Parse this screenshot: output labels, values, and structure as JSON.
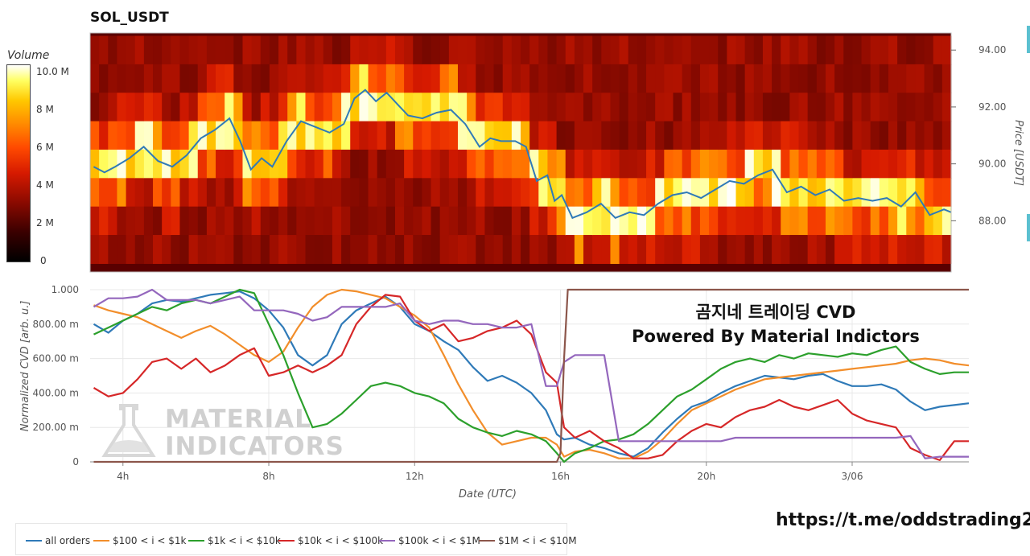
{
  "title": "SOL_USDT",
  "colorbar": {
    "title": "Volume",
    "ticks": [
      {
        "label": "10.0 M",
        "value": 10
      },
      {
        "label": "8 M",
        "value": 8
      },
      {
        "label": "6 M",
        "value": 6
      },
      {
        "label": "4 M",
        "value": 4
      },
      {
        "label": "2 M",
        "value": 2
      },
      {
        "label": "0",
        "value": 0
      }
    ],
    "max": 11.2
  },
  "overlay": {
    "line1": "곰지네 트레이딩 CVD",
    "line2": "Powered By Material Indictors"
  },
  "watermark": {
    "line1": "MATERIAL",
    "line2": "INDICATORS"
  },
  "link": "https://t.me/oddstrading2",
  "chart_data": [
    {
      "type": "heatmap",
      "title": "SOL_USDT",
      "ylabel": "Price [USDT]",
      "ylim": [
        86.2,
        94.6
      ],
      "y_ticks": [
        "94.00",
        "92.00",
        "90.00",
        "88.00"
      ],
      "x_range_hours": [
        3.1,
        27.2
      ],
      "price_levels": [
        94.0,
        93.0,
        92.0,
        91.0,
        90.0,
        89.0,
        88.0,
        87.0,
        86.2
      ],
      "colorscale": [
        "#000000",
        "#3a0000",
        "#8a0a00",
        "#d61a00",
        "#ff4a00",
        "#ff8a00",
        "#ffc800",
        "#ffff60",
        "#ffffff"
      ],
      "price_series": {
        "name": "Price",
        "color": "#2f7ab8",
        "x": [
          3.2,
          3.5,
          3.8,
          4.2,
          4.6,
          5.0,
          5.4,
          5.8,
          6.2,
          6.6,
          7.0,
          7.3,
          7.6,
          7.9,
          8.2,
          8.6,
          9.0,
          9.4,
          9.8,
          10.2,
          10.5,
          10.8,
          11.1,
          11.4,
          11.7,
          12.0,
          12.4,
          12.8,
          13.2,
          13.6,
          14.0,
          14.3,
          14.6,
          15.0,
          15.3,
          15.6,
          15.9,
          16.1,
          16.3,
          16.6,
          17.0,
          17.4,
          17.8,
          18.2,
          18.6,
          19.0,
          19.4,
          19.8,
          20.2,
          20.6,
          21.0,
          21.4,
          21.8,
          22.2,
          22.6,
          23.0,
          23.4,
          23.8,
          24.2,
          24.6,
          25.0,
          25.4,
          25.8,
          26.2,
          26.6,
          27.0,
          27.2
        ],
        "y": [
          89.9,
          89.7,
          89.9,
          90.2,
          90.6,
          90.1,
          89.9,
          90.3,
          90.9,
          91.2,
          91.6,
          90.8,
          89.8,
          90.2,
          89.9,
          90.8,
          91.5,
          91.3,
          91.1,
          91.4,
          92.3,
          92.6,
          92.2,
          92.5,
          92.1,
          91.7,
          91.6,
          91.8,
          91.9,
          91.4,
          90.6,
          90.9,
          90.8,
          90.8,
          90.6,
          89.4,
          89.6,
          88.7,
          88.9,
          88.1,
          88.3,
          88.6,
          88.1,
          88.3,
          88.2,
          88.6,
          88.9,
          89.0,
          88.8,
          89.1,
          89.4,
          89.3,
          89.6,
          89.8,
          89.0,
          89.2,
          88.9,
          89.1,
          88.7,
          88.8,
          88.7,
          88.8,
          88.5,
          89.0,
          88.2,
          88.4,
          88.3
        ]
      }
    },
    {
      "type": "line",
      "xlabel": "Date (UTC)",
      "ylabel": "Normalized CVD [arb. u.]",
      "ylim": [
        0,
        1
      ],
      "y_ticks": [
        "1.000",
        "800.00 m",
        "600.00 m",
        "400.00 m",
        "200.00 m",
        "0"
      ],
      "x_ticks": [
        "4h",
        "8h",
        "12h",
        "16h",
        "20h",
        "3/06"
      ],
      "x_tick_hours": [
        4,
        8,
        12,
        16,
        20,
        24
      ],
      "x_range_hours": [
        3.1,
        27.2
      ],
      "series": [
        {
          "name": "all orders",
          "color": "#2f7ab8",
          "x": [
            3.2,
            3.6,
            4.0,
            4.4,
            4.8,
            5.2,
            5.6,
            6.0,
            6.4,
            6.8,
            7.2,
            7.6,
            8.0,
            8.4,
            8.8,
            9.2,
            9.6,
            10.0,
            10.4,
            10.8,
            11.2,
            11.6,
            12.0,
            12.4,
            12.8,
            13.2,
            13.6,
            14.0,
            14.4,
            14.8,
            15.2,
            15.6,
            15.9,
            16.1,
            16.4,
            16.8,
            17.2,
            17.6,
            18.0,
            18.4,
            18.8,
            19.2,
            19.6,
            20.0,
            20.4,
            20.8,
            21.2,
            21.6,
            22.0,
            22.4,
            22.8,
            23.2,
            23.6,
            24.0,
            24.4,
            24.8,
            25.2,
            25.6,
            26.0,
            26.4,
            26.8,
            27.2
          ],
          "y": [
            0.8,
            0.75,
            0.82,
            0.86,
            0.92,
            0.94,
            0.93,
            0.95,
            0.97,
            0.98,
            0.99,
            0.95,
            0.88,
            0.78,
            0.62,
            0.56,
            0.62,
            0.8,
            0.88,
            0.92,
            0.96,
            0.9,
            0.8,
            0.76,
            0.7,
            0.65,
            0.55,
            0.47,
            0.5,
            0.46,
            0.4,
            0.3,
            0.16,
            0.13,
            0.14,
            0.1,
            0.08,
            0.05,
            0.03,
            0.08,
            0.17,
            0.25,
            0.32,
            0.35,
            0.4,
            0.44,
            0.47,
            0.5,
            0.49,
            0.48,
            0.5,
            0.51,
            0.47,
            0.44,
            0.44,
            0.45,
            0.42,
            0.35,
            0.3,
            0.32,
            0.33,
            0.34
          ]
        },
        {
          "name": "$100 < i < $1k",
          "color": "#f28e2b",
          "x": [
            3.2,
            3.6,
            4.0,
            4.4,
            4.8,
            5.2,
            5.6,
            6.0,
            6.4,
            6.8,
            7.2,
            7.6,
            8.0,
            8.4,
            8.8,
            9.2,
            9.6,
            10.0,
            10.4,
            10.8,
            11.2,
            11.6,
            12.0,
            12.4,
            12.8,
            13.2,
            13.6,
            14.0,
            14.4,
            14.8,
            15.2,
            15.6,
            15.9,
            16.1,
            16.4,
            16.8,
            17.2,
            17.6,
            18.0,
            18.4,
            18.8,
            19.2,
            19.6,
            20.0,
            20.4,
            20.8,
            21.2,
            21.6,
            22.0,
            22.4,
            22.8,
            23.2,
            23.6,
            24.0,
            24.4,
            24.8,
            25.2,
            25.6,
            26.0,
            26.4,
            26.8,
            27.2
          ],
          "y": [
            0.91,
            0.88,
            0.86,
            0.84,
            0.8,
            0.76,
            0.72,
            0.76,
            0.79,
            0.74,
            0.68,
            0.62,
            0.58,
            0.64,
            0.78,
            0.9,
            0.97,
            1.0,
            0.99,
            0.97,
            0.95,
            0.9,
            0.85,
            0.78,
            0.62,
            0.45,
            0.3,
            0.17,
            0.1,
            0.12,
            0.14,
            0.14,
            0.1,
            0.03,
            0.06,
            0.07,
            0.05,
            0.02,
            0.02,
            0.06,
            0.13,
            0.22,
            0.3,
            0.34,
            0.38,
            0.42,
            0.45,
            0.48,
            0.49,
            0.5,
            0.51,
            0.52,
            0.53,
            0.54,
            0.55,
            0.56,
            0.57,
            0.59,
            0.6,
            0.59,
            0.57,
            0.56
          ]
        },
        {
          "name": "$1k < i < $10k",
          "color": "#2ca02c",
          "x": [
            3.2,
            3.6,
            4.0,
            4.4,
            4.8,
            5.2,
            5.6,
            6.0,
            6.4,
            6.8,
            7.2,
            7.6,
            8.0,
            8.4,
            8.8,
            9.2,
            9.6,
            10.0,
            10.4,
            10.8,
            11.2,
            11.6,
            12.0,
            12.4,
            12.8,
            13.2,
            13.6,
            14.0,
            14.4,
            14.8,
            15.2,
            15.6,
            15.9,
            16.1,
            16.4,
            16.8,
            17.2,
            17.6,
            18.0,
            18.4,
            18.8,
            19.2,
            19.6,
            20.0,
            20.4,
            20.8,
            21.2,
            21.6,
            22.0,
            22.4,
            22.8,
            23.2,
            23.6,
            24.0,
            24.4,
            24.8,
            25.2,
            25.6,
            26.0,
            26.4,
            26.8,
            27.2
          ],
          "y": [
            0.74,
            0.78,
            0.82,
            0.86,
            0.9,
            0.88,
            0.92,
            0.94,
            0.92,
            0.96,
            1.0,
            0.98,
            0.8,
            0.62,
            0.4,
            0.2,
            0.22,
            0.28,
            0.36,
            0.44,
            0.46,
            0.44,
            0.4,
            0.38,
            0.34,
            0.25,
            0.2,
            0.17,
            0.15,
            0.18,
            0.16,
            0.12,
            0.05,
            0.0,
            0.05,
            0.08,
            0.12,
            0.13,
            0.16,
            0.22,
            0.3,
            0.38,
            0.42,
            0.48,
            0.54,
            0.58,
            0.6,
            0.58,
            0.62,
            0.6,
            0.63,
            0.62,
            0.61,
            0.63,
            0.62,
            0.65,
            0.67,
            0.58,
            0.54,
            0.51,
            0.52,
            0.52
          ]
        },
        {
          "name": "$10k < i < $100k",
          "color": "#d62728",
          "x": [
            3.2,
            3.6,
            4.0,
            4.4,
            4.8,
            5.2,
            5.6,
            6.0,
            6.4,
            6.8,
            7.2,
            7.6,
            8.0,
            8.4,
            8.8,
            9.2,
            9.6,
            10.0,
            10.4,
            10.8,
            11.2,
            11.6,
            12.0,
            12.4,
            12.8,
            13.2,
            13.6,
            14.0,
            14.4,
            14.8,
            15.2,
            15.6,
            15.9,
            16.1,
            16.4,
            16.8,
            17.2,
            17.6,
            18.0,
            18.4,
            18.8,
            19.2,
            19.6,
            20.0,
            20.4,
            20.8,
            21.2,
            21.6,
            22.0,
            22.4,
            22.8,
            23.2,
            23.6,
            24.0,
            24.4,
            24.8,
            25.2,
            25.6,
            26.0,
            26.4,
            26.8,
            27.2
          ],
          "y": [
            0.43,
            0.38,
            0.4,
            0.48,
            0.58,
            0.6,
            0.54,
            0.6,
            0.52,
            0.56,
            0.62,
            0.66,
            0.5,
            0.52,
            0.56,
            0.52,
            0.56,
            0.62,
            0.8,
            0.9,
            0.97,
            0.96,
            0.82,
            0.76,
            0.8,
            0.7,
            0.72,
            0.76,
            0.78,
            0.82,
            0.74,
            0.52,
            0.46,
            0.2,
            0.14,
            0.18,
            0.12,
            0.08,
            0.02,
            0.02,
            0.04,
            0.12,
            0.18,
            0.22,
            0.2,
            0.26,
            0.3,
            0.32,
            0.36,
            0.32,
            0.3,
            0.33,
            0.36,
            0.28,
            0.24,
            0.22,
            0.2,
            0.08,
            0.04,
            0.01,
            0.12,
            0.12
          ]
        },
        {
          "name": "$100k < i < $1M",
          "color": "#9467bd",
          "x": [
            3.2,
            3.6,
            4.0,
            4.4,
            4.8,
            5.2,
            5.6,
            6.0,
            6.4,
            6.8,
            7.2,
            7.6,
            8.0,
            8.4,
            8.8,
            9.2,
            9.6,
            10.0,
            10.4,
            10.8,
            11.2,
            11.6,
            12.0,
            12.4,
            12.8,
            13.2,
            13.6,
            14.0,
            14.4,
            14.8,
            15.2,
            15.6,
            15.9,
            16.1,
            16.4,
            16.8,
            17.2,
            17.6,
            18.0,
            18.4,
            18.8,
            19.2,
            19.6,
            20.0,
            20.4,
            20.8,
            21.2,
            21.6,
            22.0,
            22.4,
            22.8,
            23.2,
            23.6,
            24.0,
            24.4,
            24.8,
            25.2,
            25.6,
            26.0,
            26.4,
            26.8,
            27.2
          ],
          "y": [
            0.9,
            0.95,
            0.95,
            0.96,
            1.0,
            0.94,
            0.94,
            0.94,
            0.92,
            0.94,
            0.96,
            0.88,
            0.88,
            0.88,
            0.86,
            0.82,
            0.84,
            0.9,
            0.9,
            0.9,
            0.9,
            0.92,
            0.82,
            0.8,
            0.82,
            0.82,
            0.8,
            0.8,
            0.78,
            0.78,
            0.8,
            0.44,
            0.44,
            0.58,
            0.62,
            0.62,
            0.62,
            0.12,
            0.12,
            0.12,
            0.12,
            0.12,
            0.12,
            0.12,
            0.12,
            0.14,
            0.14,
            0.14,
            0.14,
            0.14,
            0.14,
            0.14,
            0.14,
            0.14,
            0.14,
            0.14,
            0.14,
            0.15,
            0.02,
            0.03,
            0.03,
            0.03
          ]
        },
        {
          "name": "$1M < i < $10M",
          "color": "#8c564b",
          "x": [
            3.2,
            15.9,
            16.0,
            16.1,
            16.2,
            27.2
          ],
          "y": [
            0.0,
            0.0,
            0.05,
            0.6,
            1.0,
            1.0
          ]
        }
      ]
    }
  ]
}
